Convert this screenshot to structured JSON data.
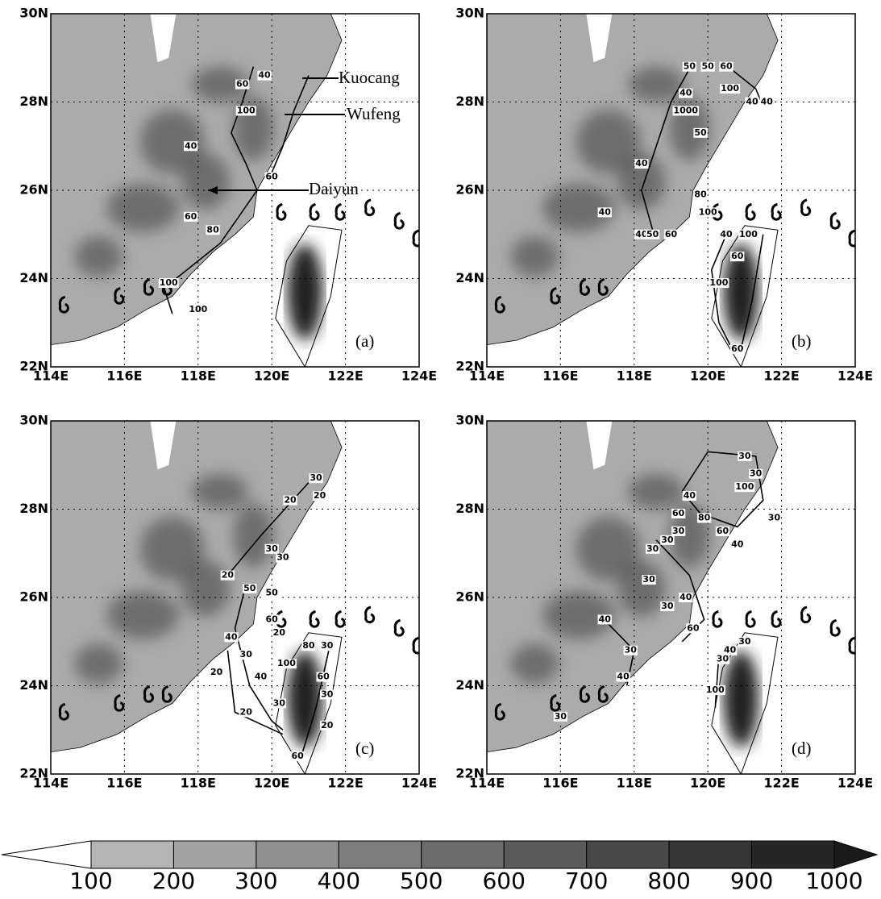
{
  "axes": {
    "xticks": [
      "114E",
      "116E",
      "118E",
      "120E",
      "122E",
      "124E"
    ],
    "yticks": [
      "22N",
      "24N",
      "26N",
      "28N",
      "30N"
    ]
  },
  "annotations": [
    "Kuocang",
    "Wufeng",
    "Daiyun"
  ],
  "panels": [
    {
      "label": "(a)",
      "contour_labels": [
        40,
        60,
        40,
        100,
        60,
        80,
        60,
        100,
        100
      ]
    },
    {
      "label": "(b)",
      "contour_labels": [
        50,
        50,
        60,
        100,
        40,
        1000,
        40,
        40,
        50,
        40,
        80,
        100,
        40,
        40,
        50,
        60,
        40,
        100,
        60,
        100,
        60
      ]
    },
    {
      "label": "(c)",
      "contour_labels": [
        30,
        20,
        20,
        30,
        30,
        20,
        50,
        50,
        60,
        40,
        20,
        30,
        40,
        20,
        20,
        30,
        100,
        80,
        60,
        30,
        30,
        20,
        60
      ]
    },
    {
      "label": "(d)",
      "contour_labels": [
        30,
        30,
        100,
        30,
        40,
        60,
        80,
        30,
        60,
        40,
        30,
        30,
        30,
        30,
        40,
        60,
        40,
        30,
        40,
        30,
        40,
        30,
        100,
        30
      ]
    }
  ],
  "colorbar": {
    "ticks": [
      100,
      200,
      300,
      400,
      500,
      600,
      700,
      800,
      900,
      1000
    ],
    "colors": [
      "#ffffff",
      "#b4b4b4",
      "#a2a2a2",
      "#909090",
      "#7e7e7e",
      "#6c6c6c",
      "#5a5a5a",
      "#484848",
      "#363636",
      "#262626",
      "#1a1a1a"
    ]
  }
}
